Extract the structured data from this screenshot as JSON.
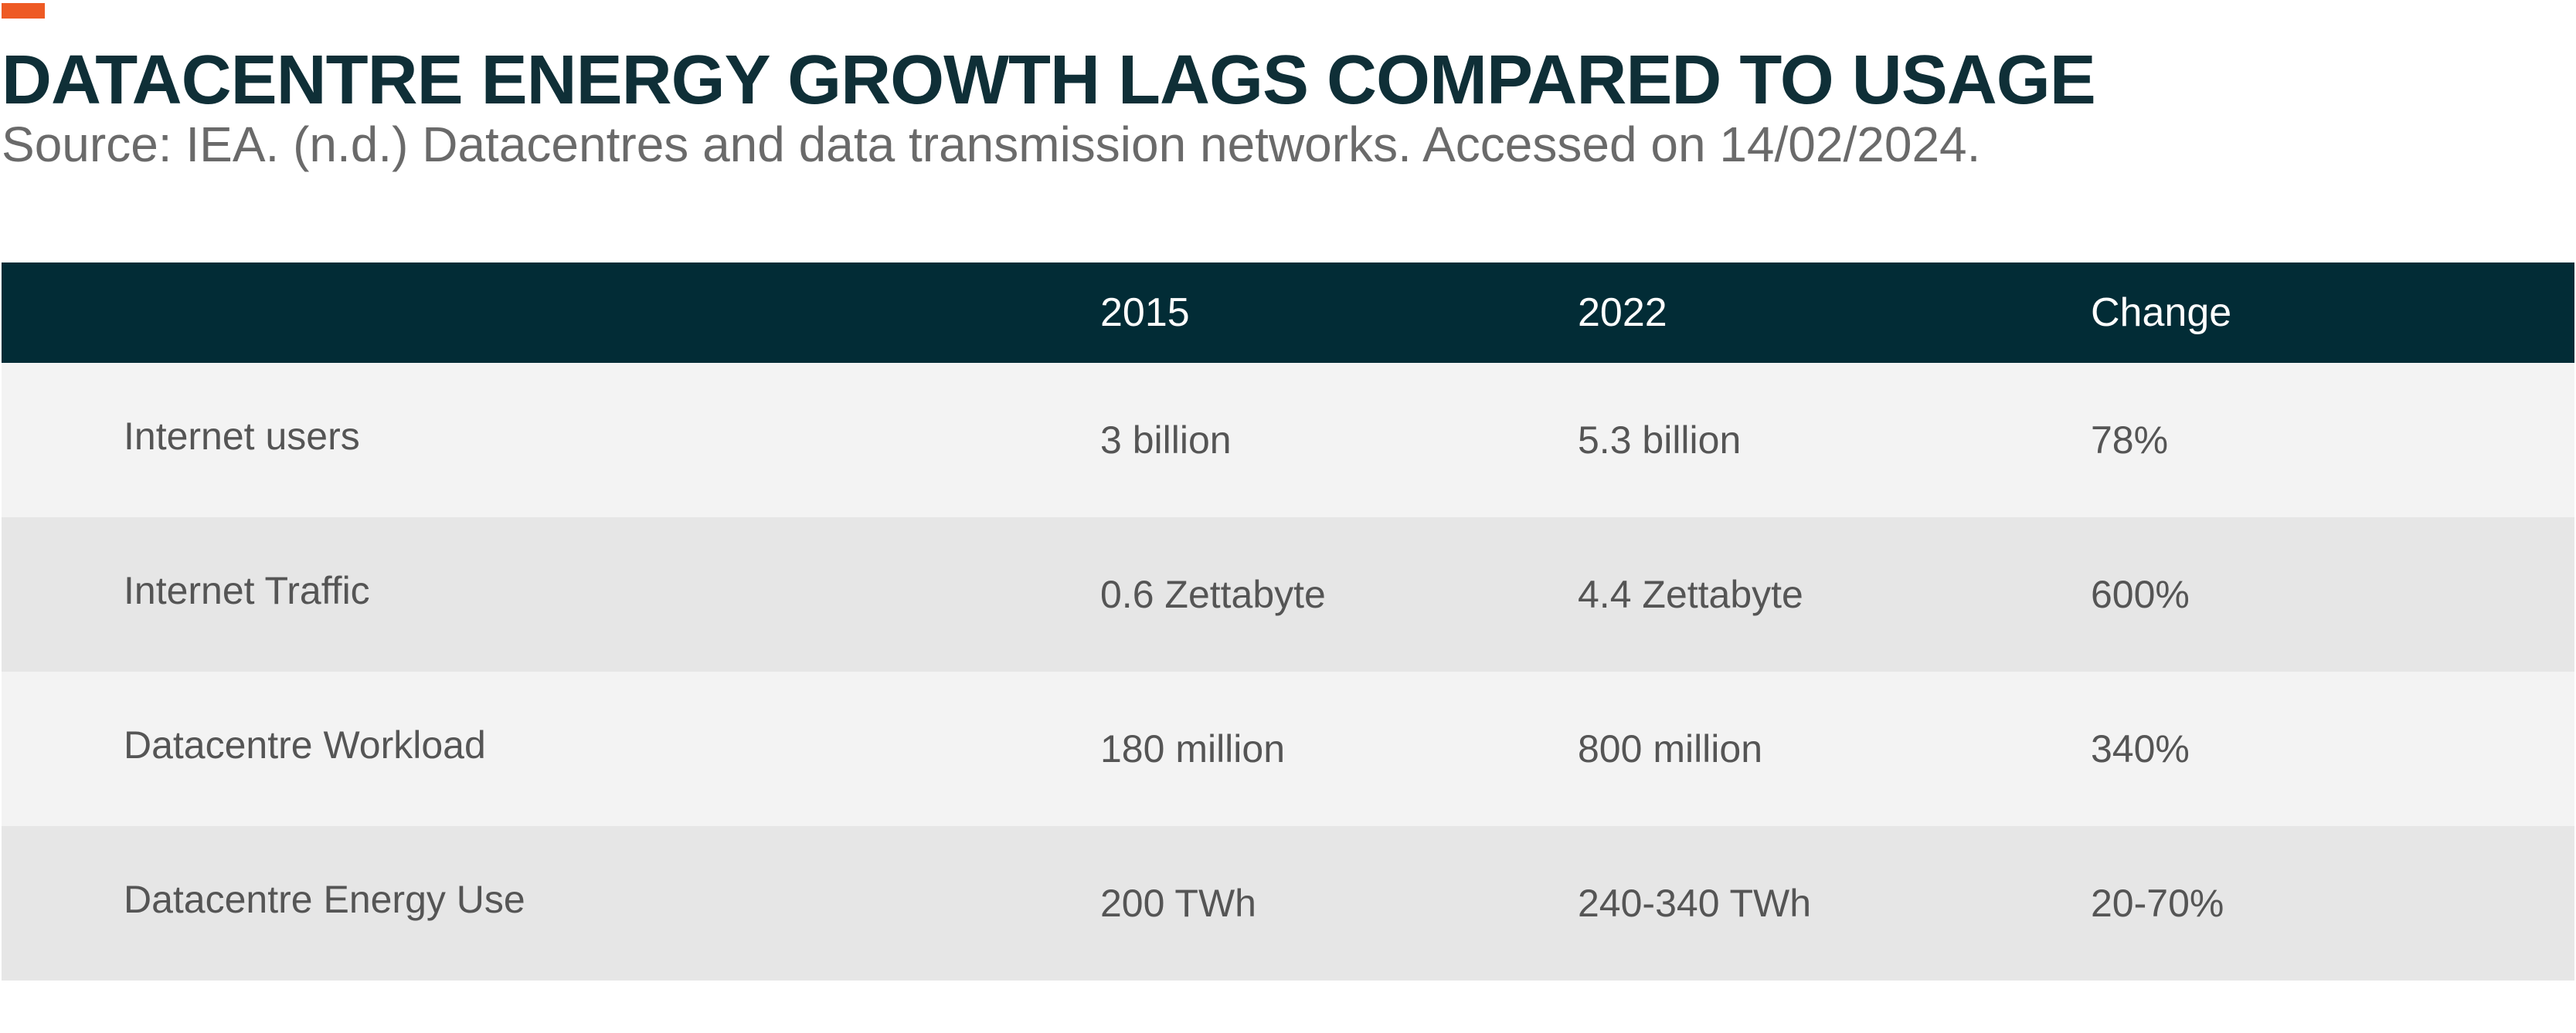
{
  "title": "DATACENTRE ENERGY GROWTH LAGS COMPARED TO USAGE",
  "subtitle": "Source: IEA. (n.d.) Datacentres and data transmission networks. Accessed on 14/02/2024.",
  "colors": {
    "accent": "#ee5a24",
    "header_bg": "#022c36",
    "title_text": "#0f2f37",
    "row_light": "#f3f3f3",
    "row_dark": "#e6e6e6"
  },
  "chart_data": {
    "type": "table",
    "title": "DATACENTRE ENERGY GROWTH LAGS COMPARED TO USAGE",
    "subtitle": "Source: IEA. (n.d.) Datacentres and data transmission networks. Accessed on 14/02/2024.",
    "columns": [
      "",
      "2015",
      "2022",
      "Change"
    ],
    "rows": [
      [
        "Internet users",
        "3 billion",
        "5.3 billion",
        "78%"
      ],
      [
        "Internet Traffic",
        "0.6 Zettabyte",
        "4.4 Zettabyte",
        "600%"
      ],
      [
        "Datacentre Workload",
        "180 million",
        "800 million",
        "340%"
      ],
      [
        "Datacentre Energy Use",
        "200 TWh",
        "240-340 TWh",
        "20-70%"
      ]
    ]
  }
}
